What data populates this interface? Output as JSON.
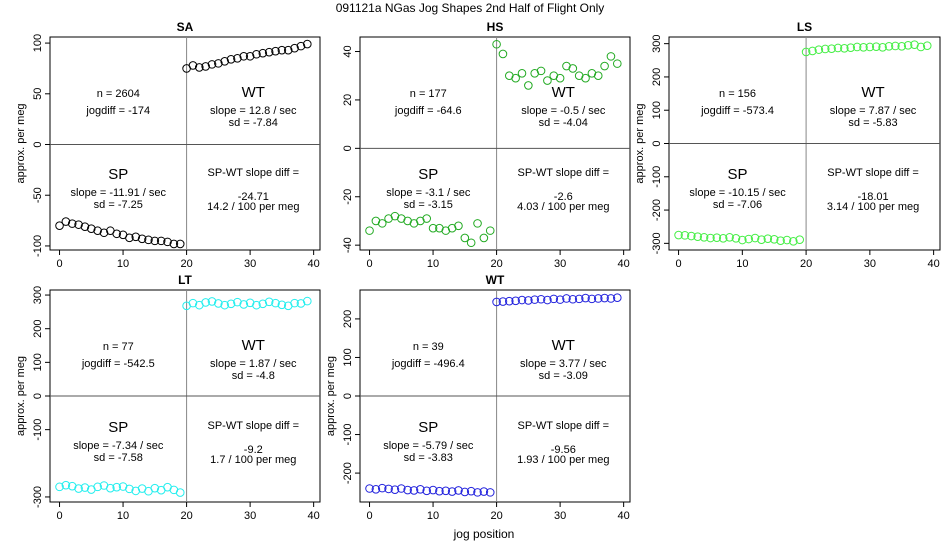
{
  "figure": {
    "title": "091121a   NGas Jog Shapes 2nd Half of Flight Only",
    "xlabel": "jog position"
  },
  "chart_data": [
    {
      "type": "scatter",
      "title": "SA",
      "color": "#000000",
      "ylabel": "approx. per meg",
      "xlim": [
        -1.5,
        41
      ],
      "ylim": [
        -104,
        106
      ],
      "xticks": [
        0,
        10,
        20,
        30,
        40
      ],
      "yticks": [
        -100,
        -50,
        0,
        50,
        100
      ],
      "sp": {
        "x": [
          0,
          1,
          2,
          3,
          4,
          5,
          6,
          7,
          8,
          9,
          10,
          11,
          12,
          13,
          14,
          15,
          16,
          17,
          18,
          19
        ],
        "y": [
          -80,
          -76,
          -78,
          -79,
          -81,
          -83,
          -85,
          -87,
          -85,
          -88,
          -89,
          -92,
          -91,
          -93,
          -94,
          -95,
          -95,
          -96,
          -98,
          -98
        ]
      },
      "wt": {
        "x": [
          20,
          21,
          22,
          23,
          24,
          25,
          26,
          27,
          28,
          29,
          30,
          31,
          32,
          33,
          34,
          35,
          36,
          37,
          38,
          39
        ],
        "y": [
          75,
          78,
          76,
          77,
          79,
          80,
          82,
          84,
          85,
          87,
          87,
          89,
          90,
          91,
          92,
          93,
          93,
          95,
          97,
          99
        ]
      },
      "n_label": "n = 2604",
      "jogdiff_label": "jogdiff = -174",
      "wt_label": "WT",
      "wt_slope": "slope = 12.8 / sec",
      "wt_sd": "sd = -7.84",
      "sp_label": "SP",
      "sp_slope": "slope = -11.91 / sec",
      "sp_sd": "sd = -7.25",
      "diff_label": "SP-WT slope diff =",
      "diff_value": "-24.71",
      "diff_rate": "14.2 / 100 per meg"
    },
    {
      "type": "scatter",
      "title": "HS",
      "color": "#22aa22",
      "ylabel": "",
      "xlim": [
        -1.5,
        41
      ],
      "ylim": [
        -42,
        46
      ],
      "xticks": [
        0,
        10,
        20,
        30,
        40
      ],
      "yticks": [
        -40,
        -20,
        0,
        20,
        40
      ],
      "sp": {
        "x": [
          0,
          1,
          2,
          3,
          4,
          5,
          6,
          7,
          8,
          9,
          10,
          11,
          12,
          13,
          14,
          15,
          16,
          17,
          18,
          19
        ],
        "y": [
          -34,
          -30,
          -31,
          -29,
          -28,
          -29,
          -30,
          -31,
          -30,
          -29,
          -33,
          -33,
          -34,
          -33,
          -32,
          -37,
          -39,
          -31,
          -37,
          -34
        ]
      },
      "wt": {
        "x": [
          20,
          21,
          22,
          23,
          24,
          25,
          26,
          27,
          28,
          29,
          30,
          31,
          32,
          33,
          34,
          35,
          36,
          37,
          38,
          39
        ],
        "y": [
          43,
          39,
          30,
          29,
          31,
          26,
          31,
          32,
          28,
          30,
          29,
          34,
          33,
          30,
          29,
          31,
          30,
          34,
          38,
          35
        ]
      },
      "n_label": "n = 177",
      "jogdiff_label": "jogdiff = -64.6",
      "wt_label": "WT",
      "wt_slope": "slope = -0.5 / sec",
      "wt_sd": "sd = -4.04",
      "sp_label": "SP",
      "sp_slope": "slope = -3.1 / sec",
      "sp_sd": "sd = -3.15",
      "diff_label": "SP-WT slope diff =",
      "diff_value": "-2.6",
      "diff_rate": "4.03 / 100 per meg"
    },
    {
      "type": "scatter",
      "title": "LS",
      "color": "#44ee44",
      "ylabel": "approx. per meg",
      "xlim": [
        -1.5,
        41
      ],
      "ylim": [
        -320,
        320
      ],
      "xticks": [
        0,
        10,
        20,
        30,
        40
      ],
      "yticks": [
        -300,
        -200,
        -100,
        0,
        100,
        200,
        300
      ],
      "sp": {
        "x": [
          0,
          1,
          2,
          3,
          4,
          5,
          6,
          7,
          8,
          9,
          10,
          11,
          12,
          13,
          14,
          15,
          16,
          17,
          18,
          19
        ],
        "y": [
          -275,
          -276,
          -278,
          -280,
          -282,
          -284,
          -283,
          -285,
          -282,
          -285,
          -290,
          -287,
          -284,
          -289,
          -286,
          -288,
          -292,
          -290,
          -294,
          -289
        ]
      },
      "wt": {
        "x": [
          20,
          21,
          22,
          23,
          24,
          25,
          26,
          27,
          28,
          29,
          30,
          31,
          32,
          33,
          34,
          35,
          36,
          37,
          38,
          39
        ],
        "y": [
          275,
          278,
          282,
          284,
          285,
          287,
          286,
          288,
          290,
          289,
          290,
          291,
          289,
          292,
          293,
          292,
          295,
          297,
          290,
          294
        ]
      },
      "n_label": "n = 156",
      "jogdiff_label": "jogdiff = -573.4",
      "wt_label": "WT",
      "wt_slope": "slope = 7.87 / sec",
      "wt_sd": "sd = -5.83",
      "sp_label": "SP",
      "sp_slope": "slope = -10.15 / sec",
      "sp_sd": "sd = -7.06",
      "diff_label": "SP-WT slope diff =",
      "diff_value": "-18.01",
      "diff_rate": "3.14 / 100 per meg"
    },
    {
      "type": "scatter",
      "title": "LT",
      "color": "#22eeee",
      "ylabel": "approx. per meg",
      "xlim": [
        -1.5,
        41
      ],
      "ylim": [
        -315,
        315
      ],
      "xticks": [
        0,
        10,
        20,
        30,
        40
      ],
      "yticks": [
        -300,
        -100,
        0,
        100,
        200,
        300
      ],
      "sp": {
        "x": [
          0,
          1,
          2,
          3,
          4,
          5,
          6,
          7,
          8,
          9,
          10,
          11,
          12,
          13,
          14,
          15,
          16,
          17,
          18,
          19
        ],
        "y": [
          -270,
          -265,
          -268,
          -275,
          -272,
          -278,
          -270,
          -266,
          -274,
          -271,
          -269,
          -276,
          -282,
          -275,
          -283,
          -274,
          -280,
          -271,
          -279,
          -287
        ]
      },
      "wt": {
        "x": [
          20,
          21,
          22,
          23,
          24,
          25,
          26,
          27,
          28,
          29,
          30,
          31,
          32,
          33,
          34,
          35,
          36,
          37,
          38,
          39
        ],
        "y": [
          268,
          276,
          270,
          278,
          281,
          275,
          270,
          274,
          279,
          272,
          277,
          270,
          274,
          280,
          276,
          271,
          268,
          276,
          275,
          282
        ]
      },
      "n_label": "n = 77",
      "jogdiff_label": "jogdiff = -542.5",
      "wt_label": "WT",
      "wt_slope": "slope = 1.87 / sec",
      "wt_sd": "sd = -4.8",
      "sp_label": "SP",
      "sp_slope": "slope = -7.34 / sec",
      "sp_sd": "sd = -7.58",
      "diff_label": "SP-WT slope diff =",
      "diff_value": "-9.2",
      "diff_rate": "1.7 / 100 per meg"
    },
    {
      "type": "scatter",
      "title": "WT",
      "color": "#2222dd",
      "ylabel": "approx. per meg",
      "xlim": [
        -1.5,
        41
      ],
      "ylim": [
        -275,
        275
      ],
      "xticks": [
        0,
        10,
        20,
        30,
        40
      ],
      "yticks": [
        -200,
        -100,
        0,
        100,
        200
      ],
      "sp": {
        "x": [
          0,
          1,
          2,
          3,
          4,
          5,
          6,
          7,
          8,
          9,
          10,
          11,
          12,
          13,
          14,
          15,
          16,
          17,
          18,
          19
        ],
        "y": [
          -240,
          -242,
          -239,
          -241,
          -243,
          -240,
          -244,
          -245,
          -242,
          -246,
          -244,
          -247,
          -246,
          -248,
          -245,
          -249,
          -247,
          -250,
          -248,
          -250
        ]
      },
      "wt": {
        "x": [
          20,
          21,
          22,
          23,
          24,
          25,
          26,
          27,
          28,
          29,
          30,
          31,
          32,
          33,
          34,
          35,
          36,
          37,
          38,
          39
        ],
        "y": [
          244,
          245,
          246,
          247,
          249,
          248,
          250,
          251,
          249,
          252,
          250,
          253,
          251,
          252,
          254,
          252,
          253,
          254,
          253,
          255
        ]
      },
      "n_label": "n = 39",
      "jogdiff_label": "jogdiff = -496.4",
      "wt_label": "WT",
      "wt_slope": "slope = 3.77 / sec",
      "wt_sd": "sd = -3.09",
      "sp_label": "SP",
      "sp_slope": "slope = -5.79 / sec",
      "sp_sd": "sd = -3.83",
      "diff_label": "SP-WT slope diff =",
      "diff_value": "-9.56",
      "diff_rate": "1.93 / 100 per meg"
    }
  ]
}
